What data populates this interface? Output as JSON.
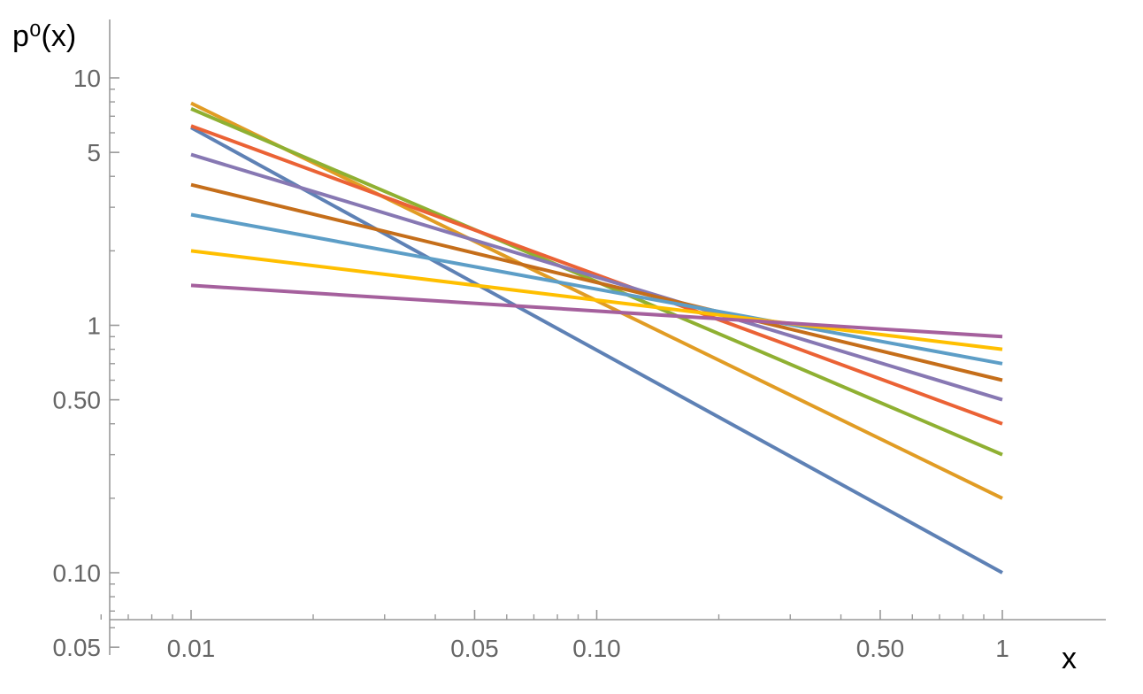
{
  "chart_data": {
    "type": "line",
    "title": "",
    "xlabel": "x",
    "ylabel": "p⁰(x)",
    "x_scale": "log",
    "y_scale": "log",
    "xlim": [
      0.0055,
      2
    ],
    "ylim": [
      0.05,
      18
    ],
    "x_ticks": [
      {
        "value": 0.01,
        "label": "0.01"
      },
      {
        "value": 0.05,
        "label": "0.05"
      },
      {
        "value": 0.1,
        "label": "0.10"
      },
      {
        "value": 0.5,
        "label": "0.50"
      },
      {
        "value": 1,
        "label": "1"
      }
    ],
    "y_ticks": [
      {
        "value": 0.05,
        "label": "0.05"
      },
      {
        "value": 0.1,
        "label": "0.10"
      },
      {
        "value": 0.5,
        "label": "0.50"
      },
      {
        "value": 1,
        "label": "1"
      },
      {
        "value": 5,
        "label": "5"
      },
      {
        "value": 10,
        "label": "10"
      }
    ],
    "grid": false,
    "legend": "none",
    "series": [
      {
        "color": "#5E81B5",
        "x": [
          0.01,
          1
        ],
        "y": [
          6.3,
          0.1
        ]
      },
      {
        "color": "#E19C24",
        "x": [
          0.01,
          1
        ],
        "y": [
          7.9,
          0.2
        ]
      },
      {
        "color": "#8FB032",
        "x": [
          0.01,
          1
        ],
        "y": [
          7.5,
          0.3
        ]
      },
      {
        "color": "#EB6235",
        "x": [
          0.01,
          1
        ],
        "y": [
          6.4,
          0.4
        ]
      },
      {
        "color": "#8778B3",
        "x": [
          0.01,
          1
        ],
        "y": [
          4.9,
          0.5
        ]
      },
      {
        "color": "#C56E1A",
        "x": [
          0.01,
          1
        ],
        "y": [
          3.7,
          0.6
        ]
      },
      {
        "color": "#5D9EC7",
        "x": [
          0.01,
          1
        ],
        "y": [
          2.8,
          0.7
        ]
      },
      {
        "color": "#FFBF00",
        "x": [
          0.01,
          1
        ],
        "y": [
          2.0,
          0.8
        ]
      },
      {
        "color": "#A5609D",
        "x": [
          0.01,
          1
        ],
        "y": [
          1.45,
          0.9
        ]
      }
    ]
  }
}
